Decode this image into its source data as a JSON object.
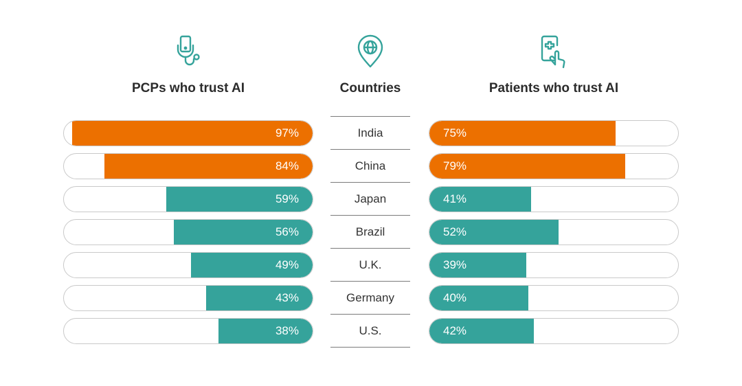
{
  "colors": {
    "highlight": "#EC7000",
    "default": "#35A39B",
    "track_border": "#C9C9C9",
    "icon": "#35A39B"
  },
  "headers": {
    "pcps": {
      "title": "PCPs who trust AI",
      "icon": "stethoscope-phone-icon"
    },
    "countries": {
      "title": "Countries",
      "icon": "globe-pin-icon"
    },
    "patients": {
      "title": "Patients who trust AI",
      "icon": "medical-phone-hand-icon"
    }
  },
  "chart_data": {
    "type": "bar",
    "categories": [
      "India",
      "China",
      "Japan",
      "Brazil",
      "U.K.",
      "Germany",
      "U.S."
    ],
    "series": [
      {
        "name": "PCPs who trust AI",
        "values": [
          97,
          84,
          59,
          56,
          49,
          43,
          38
        ],
        "labels": [
          "97%",
          "84%",
          "59%",
          "56%",
          "49%",
          "43%",
          "38%"
        ],
        "highlight": [
          true,
          true,
          false,
          false,
          false,
          false,
          false
        ]
      },
      {
        "name": "Patients who trust AI",
        "values": [
          75,
          79,
          41,
          52,
          39,
          40,
          42
        ],
        "labels": [
          "75%",
          "79%",
          "41%",
          "52%",
          "39%",
          "40%",
          "42%"
        ],
        "highlight": [
          true,
          true,
          false,
          false,
          false,
          false,
          false
        ]
      }
    ],
    "xlim": [
      0,
      100
    ],
    "xlabel": "",
    "ylabel": "Countries",
    "grid": false,
    "legend": "none"
  }
}
